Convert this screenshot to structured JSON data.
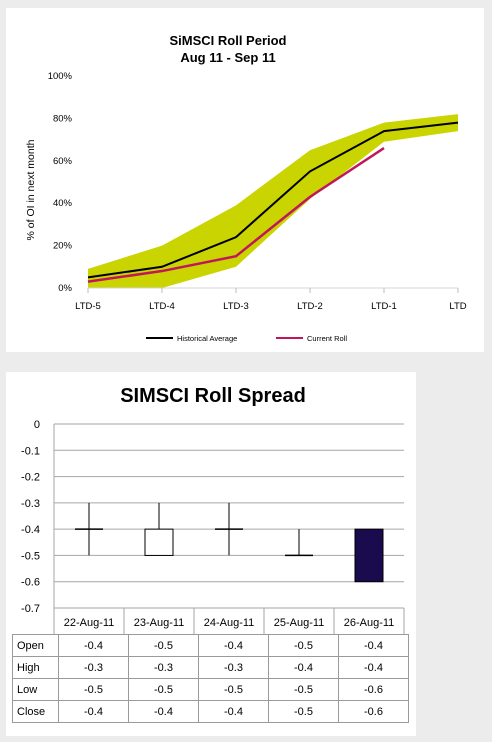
{
  "chart_data": [
    {
      "type": "area",
      "title": "SiMSCI Roll Period",
      "subtitle": "Aug 11 - Sep 11",
      "xlabel": "",
      "ylabel": "% of OI in next month",
      "categories": [
        "LTD-5",
        "LTD-4",
        "LTD-3",
        "LTD-2",
        "LTD-1",
        "LTD"
      ],
      "ylim": [
        0,
        100
      ],
      "yticks": [
        "0%",
        "20%",
        "40%",
        "60%",
        "80%",
        "100%"
      ],
      "band": {
        "upper": [
          9,
          20,
          39,
          65,
          78,
          82
        ],
        "lower": [
          0,
          0,
          10,
          42,
          69,
          74
        ],
        "color": "#c9d400"
      },
      "series": [
        {
          "name": "Historical Average",
          "color": "#000000",
          "values": [
            5,
            10,
            24,
            55,
            74,
            78
          ]
        },
        {
          "name": "Current Roll",
          "color": "#c0175a",
          "values": [
            3,
            8,
            15,
            43,
            66,
            null
          ]
        }
      ],
      "legend_position": "bottom",
      "grid": false
    },
    {
      "type": "bar",
      "title": "SIMSCI Roll Spread",
      "categories": [
        "22-Aug-11",
        "23-Aug-11",
        "24-Aug-11",
        "25-Aug-11",
        "26-Aug-11"
      ],
      "ylim": [
        -0.7,
        0
      ],
      "yticks": [
        "0",
        "-0.1",
        "-0.2",
        "-0.3",
        "-0.4",
        "-0.5",
        "-0.6",
        "-0.7"
      ],
      "grid": true,
      "rows": [
        {
          "label": "Open",
          "values": [
            "-0.4",
            "-0.5",
            "-0.4",
            "-0.5",
            "-0.4"
          ]
        },
        {
          "label": "High",
          "values": [
            "-0.3",
            "-0.3",
            "-0.3",
            "-0.4",
            "-0.4"
          ]
        },
        {
          "label": "Low",
          "values": [
            "-0.5",
            "-0.5",
            "-0.5",
            "-0.5",
            "-0.6"
          ]
        },
        {
          "label": "Close",
          "values": [
            "-0.4",
            "-0.4",
            "-0.4",
            "-0.5",
            "-0.6"
          ]
        }
      ],
      "up_color": "#ffffff",
      "down_color": "#1a0a4e"
    }
  ]
}
